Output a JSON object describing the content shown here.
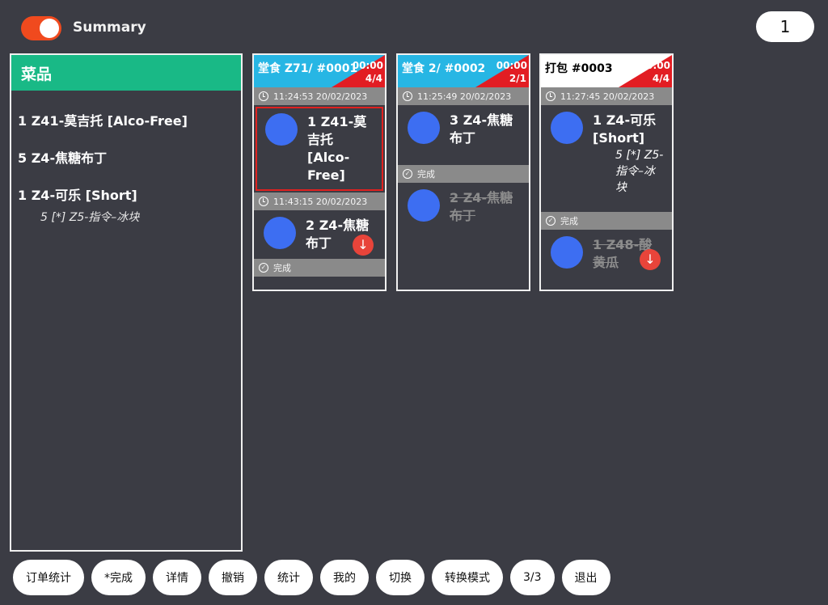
{
  "header": {
    "summary_label": "Summary",
    "page_number": "1",
    "toggle_on": true
  },
  "summary_panel": {
    "title": "菜品",
    "items": [
      {
        "label": "1 Z41-莫吉托 [Alco-Free]"
      },
      {
        "label": "5 Z4-焦糖布丁"
      },
      {
        "label": "1 Z4-可乐 [Short]",
        "modifier": "5 [*] Z5-指令–冰块"
      }
    ]
  },
  "orders": [
    {
      "title": "堂食 Z71/ #0001",
      "corner_time": "00:00",
      "count": "4/4",
      "header_style": "blue",
      "groups": [
        {
          "time": "11:24:53 20/02/2023",
          "items": [
            {
              "text": "1 Z41-莫吉托 [Alco-Free]",
              "selected": true
            }
          ]
        },
        {
          "time": "11:43:15 20/02/2023",
          "items": [
            {
              "text": "2 Z4-焦糖布丁",
              "has_down": true
            }
          ]
        }
      ],
      "done_label": "完成"
    },
    {
      "title": "堂食 2/ #0002",
      "corner_time": "00:00",
      "count": "2/1",
      "header_style": "blue",
      "groups": [
        {
          "time": "11:25:49 20/02/2023",
          "items": [
            {
              "text": "3 Z4-焦糖布丁"
            }
          ]
        }
      ],
      "done_label": "完成",
      "done_items": [
        {
          "text": "2 Z4-焦糖布丁"
        }
      ]
    },
    {
      "title": "打包  #0003",
      "corner_time": "00:00",
      "count": "4/4",
      "header_style": "white",
      "groups": [
        {
          "time": "11:27:45 20/02/2023",
          "items": [
            {
              "text": "1 Z4-可乐 [Short]",
              "modifier": "5 [*] Z5-指令–冰块"
            }
          ]
        }
      ],
      "done_label": "完成",
      "done_items": [
        {
          "text": "1 Z48-酸黄瓜",
          "has_down": true
        }
      ]
    }
  ],
  "toolbar": {
    "buttons": [
      "订单统计",
      "*完成",
      "详情",
      "撤销",
      "统计",
      "我的",
      "切换",
      "转换模式",
      "3/3",
      "退出"
    ]
  },
  "colors": {
    "background": "#3b3c44",
    "toggle": "#f04a1e",
    "panel_header": "#19b986",
    "order_header_blue": "#27b6e4",
    "corner_red": "#e21d23",
    "item_dot": "#3d6ef2",
    "selected_border": "#e0211f",
    "down_button": "#e8443a"
  }
}
